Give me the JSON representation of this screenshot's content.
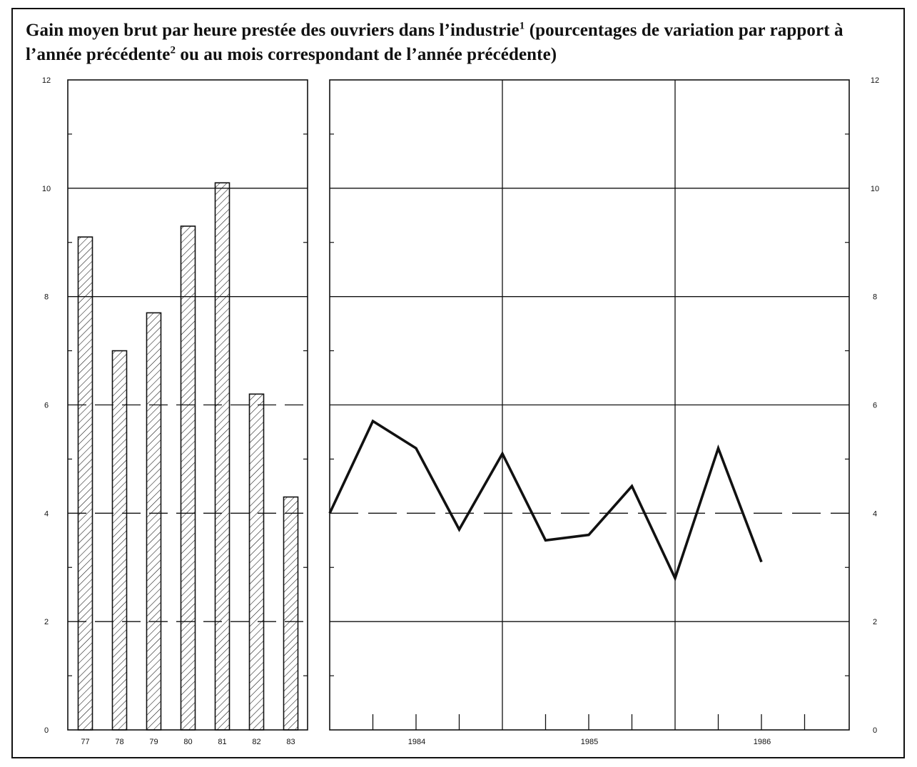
{
  "title": {
    "part1": "Gain moyen brut par heure prestée des ouvriers dans l’industrie",
    "sup1": "1",
    "part2": "(pourcentages de variation par rapport à l’année précédente",
    "sup2": "2",
    "part3": "ou au mois correspondant de l’année précédente)"
  },
  "chart_data": [
    {
      "type": "bar",
      "categories": [
        "77",
        "78",
        "79",
        "80",
        "81",
        "82",
        "83"
      ],
      "values": [
        9.1,
        7.0,
        7.7,
        9.3,
        10.1,
        6.2,
        4.3
      ],
      "ylim": [
        0,
        12
      ],
      "y_ticks": [
        0,
        2,
        4,
        6,
        8,
        10,
        12
      ],
      "grid": true,
      "bar_fill": "hatched"
    },
    {
      "type": "line",
      "x": [
        "1983-12",
        "1984-03",
        "1984-06",
        "1984-09",
        "1984-12",
        "1985-03",
        "1985-06",
        "1985-09",
        "1985-12",
        "1986-03",
        "1986-06"
      ],
      "values": [
        4.0,
        5.7,
        5.2,
        3.7,
        5.1,
        3.5,
        3.6,
        4.5,
        2.8,
        5.2,
        3.1
      ],
      "x_tick_labels": [
        "1984",
        "1985",
        "1986"
      ],
      "ylim": [
        0,
        12
      ],
      "y_ticks": [
        0,
        2,
        4,
        6,
        8,
        10,
        12
      ],
      "grid": true,
      "reference_line": 4
    }
  ],
  "colors": {
    "ink": "#111111",
    "background": "#ffffff"
  }
}
